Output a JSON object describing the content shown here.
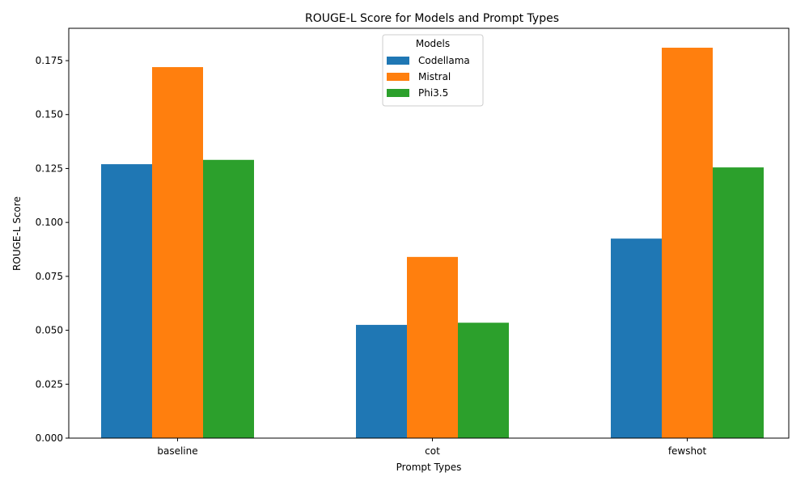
{
  "chart_data": {
    "type": "bar",
    "title": "ROUGE-L Score for Models and Prompt Types",
    "xlabel": "Prompt Types",
    "ylabel": "ROUGE-L Score",
    "categories": [
      "baseline",
      "cot",
      "fewshot"
    ],
    "series": [
      {
        "name": "Codellama",
        "color": "#1f77b4",
        "values": [
          0.127,
          0.0525,
          0.0925
        ]
      },
      {
        "name": "Mistral",
        "color": "#ff7f0e",
        "values": [
          0.172,
          0.084,
          0.181
        ]
      },
      {
        "name": "Phi3.5",
        "color": "#2ca02c",
        "values": [
          0.129,
          0.0535,
          0.1255
        ]
      }
    ],
    "ylim": [
      0,
      0.19
    ],
    "yticks": [
      "0.000",
      "0.025",
      "0.050",
      "0.075",
      "0.100",
      "0.125",
      "0.150",
      "0.175"
    ],
    "legend": {
      "title": "Models",
      "placement": "top-center"
    },
    "grid": false
  }
}
